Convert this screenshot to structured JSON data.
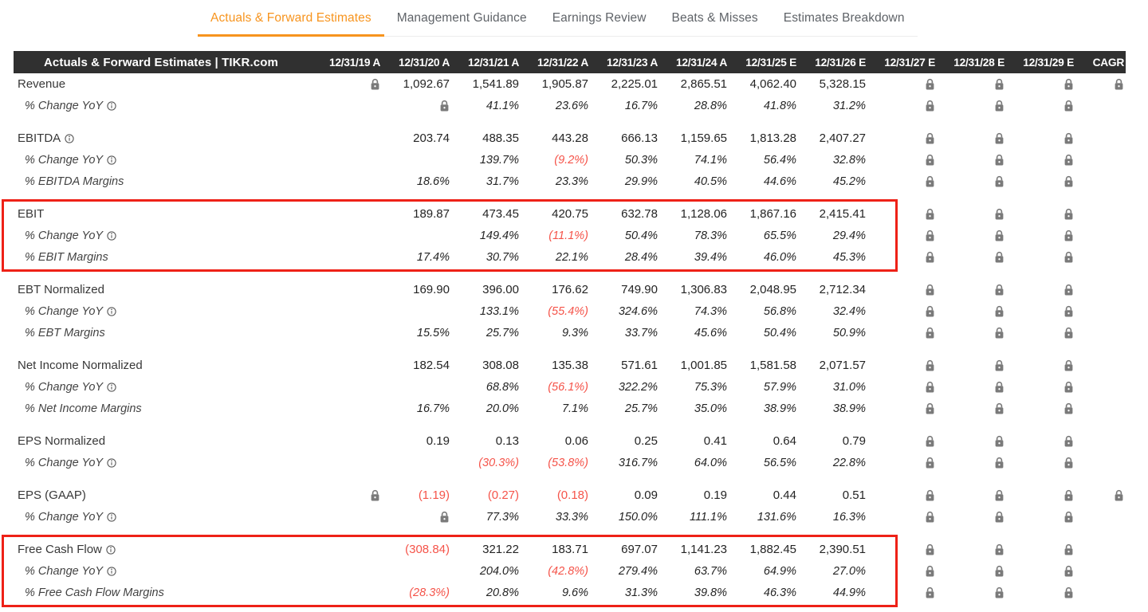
{
  "colors": {
    "accent": "#F7941E",
    "negative": "#F5544A",
    "highlight": "#EE2117",
    "header_bg": "#303030",
    "lock_gray": "#7a7a7a"
  },
  "tabs": {
    "items": [
      {
        "label": "Actuals & Forward Estimates",
        "active": true
      },
      {
        "label": "Management Guidance",
        "active": false
      },
      {
        "label": "Earnings Review",
        "active": false
      },
      {
        "label": "Beats & Misses",
        "active": false
      },
      {
        "label": "Estimates Breakdown",
        "active": false
      }
    ]
  },
  "table": {
    "title": "Actuals & Forward Estimates | TIKR.com",
    "columns": [
      "12/31/19 A",
      "12/31/20 A",
      "12/31/21 A",
      "12/31/22 A",
      "12/31/23 A",
      "12/31/24 A",
      "12/31/25 E",
      "12/31/26 E",
      "12/31/27 E",
      "12/31/28 E",
      "12/31/29 E",
      "CAGR"
    ],
    "lock_icon": "lock-icon",
    "info_icon": "info-icon",
    "sections": [
      {
        "highlighted": false,
        "rows": [
          {
            "label": "Revenue",
            "info": false,
            "sub": false,
            "cells": [
              "lock",
              "1,092.67",
              "1,541.89",
              "1,905.87",
              "2,225.01",
              "2,865.51",
              "4,062.40",
              "5,328.15",
              "lock",
              "lock",
              "lock",
              "lock"
            ]
          },
          {
            "label": "% Change YoY",
            "info": true,
            "sub": true,
            "cells": [
              "",
              "lock",
              "41.1%",
              "23.6%",
              "16.7%",
              "28.8%",
              "41.8%",
              "31.2%",
              "lock",
              "lock",
              "lock",
              ""
            ]
          }
        ]
      },
      {
        "highlighted": false,
        "rows": [
          {
            "label": "EBITDA",
            "info": true,
            "sub": false,
            "cells": [
              "",
              "203.74",
              "488.35",
              "443.28",
              "666.13",
              "1,159.65",
              "1,813.28",
              "2,407.27",
              "lock",
              "lock",
              "lock",
              ""
            ]
          },
          {
            "label": "% Change YoY",
            "info": true,
            "sub": true,
            "cells": [
              "",
              "",
              "139.7%",
              "(9.2%)",
              "50.3%",
              "74.1%",
              "56.4%",
              "32.8%",
              "lock",
              "lock",
              "lock",
              ""
            ]
          },
          {
            "label": "% EBITDA Margins",
            "info": false,
            "sub": true,
            "cells": [
              "",
              "18.6%",
              "31.7%",
              "23.3%",
              "29.9%",
              "40.5%",
              "44.6%",
              "45.2%",
              "lock",
              "lock",
              "lock",
              ""
            ]
          }
        ]
      },
      {
        "highlighted": true,
        "rows": [
          {
            "label": "EBIT",
            "info": false,
            "sub": false,
            "cells": [
              "",
              "189.87",
              "473.45",
              "420.75",
              "632.78",
              "1,128.06",
              "1,867.16",
              "2,415.41",
              "lock",
              "lock",
              "lock",
              ""
            ]
          },
          {
            "label": "% Change YoY",
            "info": true,
            "sub": true,
            "cells": [
              "",
              "",
              "149.4%",
              "(11.1%)",
              "50.4%",
              "78.3%",
              "65.5%",
              "29.4%",
              "lock",
              "lock",
              "lock",
              ""
            ]
          },
          {
            "label": "% EBIT Margins",
            "info": false,
            "sub": true,
            "cells": [
              "",
              "17.4%",
              "30.7%",
              "22.1%",
              "28.4%",
              "39.4%",
              "46.0%",
              "45.3%",
              "lock",
              "lock",
              "lock",
              ""
            ]
          }
        ]
      },
      {
        "highlighted": false,
        "rows": [
          {
            "label": "EBT Normalized",
            "info": false,
            "sub": false,
            "cells": [
              "",
              "169.90",
              "396.00",
              "176.62",
              "749.90",
              "1,306.83",
              "2,048.95",
              "2,712.34",
              "lock",
              "lock",
              "lock",
              ""
            ]
          },
          {
            "label": "% Change YoY",
            "info": true,
            "sub": true,
            "cells": [
              "",
              "",
              "133.1%",
              "(55.4%)",
              "324.6%",
              "74.3%",
              "56.8%",
              "32.4%",
              "lock",
              "lock",
              "lock",
              ""
            ]
          },
          {
            "label": "% EBT Margins",
            "info": false,
            "sub": true,
            "cells": [
              "",
              "15.5%",
              "25.7%",
              "9.3%",
              "33.7%",
              "45.6%",
              "50.4%",
              "50.9%",
              "lock",
              "lock",
              "lock",
              ""
            ]
          }
        ]
      },
      {
        "highlighted": false,
        "rows": [
          {
            "label": "Net Income Normalized",
            "info": false,
            "sub": false,
            "cells": [
              "",
              "182.54",
              "308.08",
              "135.38",
              "571.61",
              "1,001.85",
              "1,581.58",
              "2,071.57",
              "lock",
              "lock",
              "lock",
              ""
            ]
          },
          {
            "label": "% Change YoY",
            "info": true,
            "sub": true,
            "cells": [
              "",
              "",
              "68.8%",
              "(56.1%)",
              "322.2%",
              "75.3%",
              "57.9%",
              "31.0%",
              "lock",
              "lock",
              "lock",
              ""
            ]
          },
          {
            "label": "% Net Income Margins",
            "info": false,
            "sub": true,
            "cells": [
              "",
              "16.7%",
              "20.0%",
              "7.1%",
              "25.7%",
              "35.0%",
              "38.9%",
              "38.9%",
              "lock",
              "lock",
              "lock",
              ""
            ]
          }
        ]
      },
      {
        "highlighted": false,
        "rows": [
          {
            "label": "EPS Normalized",
            "info": false,
            "sub": false,
            "cells": [
              "",
              "0.19",
              "0.13",
              "0.06",
              "0.25",
              "0.41",
              "0.64",
              "0.79",
              "lock",
              "lock",
              "lock",
              ""
            ]
          },
          {
            "label": "% Change YoY",
            "info": true,
            "sub": true,
            "cells": [
              "",
              "",
              "(30.3%)",
              "(53.8%)",
              "316.7%",
              "64.0%",
              "56.5%",
              "22.8%",
              "lock",
              "lock",
              "lock",
              ""
            ]
          }
        ]
      },
      {
        "highlighted": false,
        "rows": [
          {
            "label": "EPS (GAAP)",
            "info": false,
            "sub": false,
            "cells": [
              "lock",
              "(1.19)",
              "(0.27)",
              "(0.18)",
              "0.09",
              "0.19",
              "0.44",
              "0.51",
              "lock",
              "lock",
              "lock",
              "lock"
            ]
          },
          {
            "label": "% Change YoY",
            "info": true,
            "sub": true,
            "cells": [
              "",
              "lock",
              "77.3%",
              "33.3%",
              "150.0%",
              "111.1%",
              "131.6%",
              "16.3%",
              "lock",
              "lock",
              "lock",
              ""
            ]
          }
        ]
      },
      {
        "highlighted": true,
        "rows": [
          {
            "label": "Free Cash Flow",
            "info": true,
            "sub": false,
            "cells": [
              "",
              "(308.84)",
              "321.22",
              "183.71",
              "697.07",
              "1,141.23",
              "1,882.45",
              "2,390.51",
              "lock",
              "lock",
              "lock",
              ""
            ]
          },
          {
            "label": "% Change YoY",
            "info": true,
            "sub": true,
            "cells": [
              "",
              "",
              "204.0%",
              "(42.8%)",
              "279.4%",
              "63.7%",
              "64.9%",
              "27.0%",
              "lock",
              "lock",
              "lock",
              ""
            ]
          },
          {
            "label": "% Free Cash Flow Margins",
            "info": false,
            "sub": true,
            "cells": [
              "",
              "(28.3%)",
              "20.8%",
              "9.6%",
              "31.3%",
              "39.8%",
              "46.3%",
              "44.9%",
              "lock",
              "lock",
              "lock",
              ""
            ]
          }
        ]
      }
    ]
  }
}
